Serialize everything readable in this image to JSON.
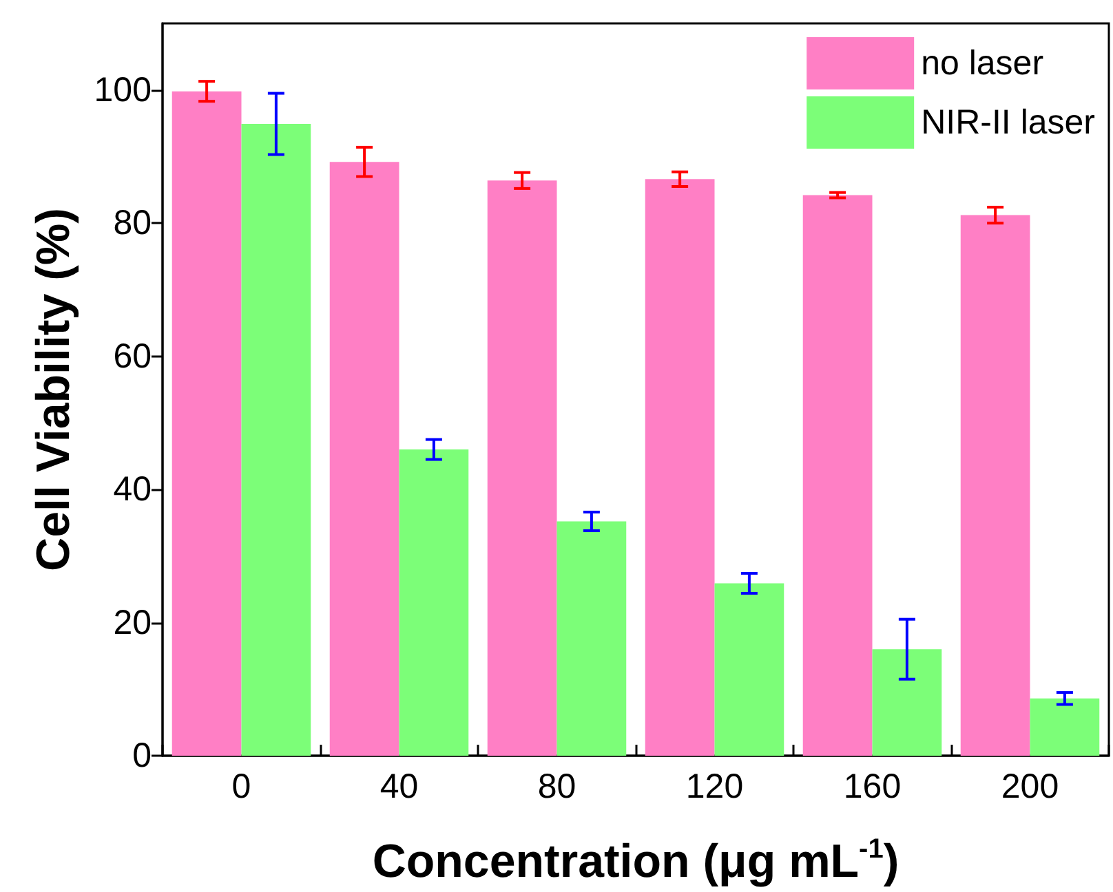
{
  "chart_data": {
    "type": "bar",
    "xlabel": "Concentration (μg mL$^{-1}$)",
    "ylabel": "Cell Viability (%)",
    "categories": [
      "0",
      "40",
      "80",
      "120",
      "160",
      "200"
    ],
    "series": [
      {
        "name": "no laser",
        "color": "#ff7fc5",
        "values": [
          99.8,
          89.2,
          86.4,
          86.6,
          84.2,
          81.2
        ],
        "errors": [
          1.5,
          2.2,
          1.2,
          1.1,
          0.4,
          1.2
        ]
      },
      {
        "name": "NIR-II laser",
        "color": "#7cfe78",
        "values": [
          94.9,
          46,
          35.2,
          25.9,
          16,
          8.6
        ],
        "errors": [
          4.6,
          1.5,
          1.4,
          1.5,
          4.5,
          0.9
        ]
      }
    ],
    "ylim": [
      0,
      110
    ],
    "yticks": [
      0,
      20,
      40,
      60,
      80,
      100
    ],
    "grid": false,
    "legend": "top right"
  }
}
